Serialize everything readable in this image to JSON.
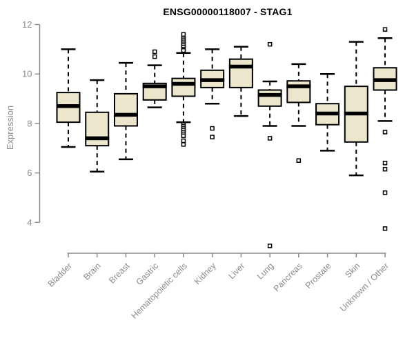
{
  "title": "ENSG00000118007 - STAG1",
  "chart_data": {
    "type": "boxplot",
    "title": "ENSG00000118007 - STAG1",
    "xlabel": "",
    "ylabel": "Expression",
    "ylim": [
      4,
      12
    ],
    "yticks": [
      4,
      6,
      8,
      10,
      12
    ],
    "grid": false,
    "legend": false,
    "colors": {
      "box_fill": "#ece6cc",
      "box_stroke": "#000000",
      "median": "#000000",
      "whisker": "#000000",
      "outlier_stroke": "#000000",
      "axis": "#8c8c8c",
      "tick_label": "#8c8c8c",
      "title": "#000000"
    },
    "categories": [
      "Bladder",
      "Brain",
      "Breast",
      "Gastric",
      "Hematopoietic cells",
      "Kidney",
      "Liver",
      "Lung",
      "Pancreas",
      "Prostate",
      "Skin",
      "Unknown / Other"
    ],
    "series": [
      {
        "name": "Bladder",
        "low": 7.05,
        "q1": 8.05,
        "median": 8.7,
        "q3": 9.25,
        "high": 11.0,
        "outliers": []
      },
      {
        "name": "Brain",
        "low": 6.05,
        "q1": 7.1,
        "median": 7.4,
        "q3": 8.45,
        "high": 9.75,
        "outliers": []
      },
      {
        "name": "Breast",
        "low": 6.55,
        "q1": 7.9,
        "median": 8.35,
        "q3": 9.2,
        "high": 10.45,
        "outliers": []
      },
      {
        "name": "Gastric",
        "low": 8.65,
        "q1": 8.95,
        "median": 9.5,
        "q3": 9.62,
        "high": 10.35,
        "outliers": [
          10.7,
          10.9
        ]
      },
      {
        "name": "Hematopoietic cells",
        "low": 8.05,
        "q1": 9.1,
        "median": 9.6,
        "q3": 9.82,
        "high": 10.85,
        "outliers": [
          11.6,
          11.45,
          11.38,
          11.3,
          11.22,
          11.15,
          11.08,
          11.0,
          10.95,
          7.95,
          7.88,
          7.8,
          7.73,
          7.65,
          7.58,
          7.5,
          7.3,
          7.15
        ]
      },
      {
        "name": "Kidney",
        "low": 8.8,
        "q1": 9.45,
        "median": 9.75,
        "q3": 10.15,
        "high": 11.0,
        "outliers": [
          7.8,
          7.45
        ]
      },
      {
        "name": "Liver",
        "low": 8.3,
        "q1": 9.45,
        "median": 10.3,
        "q3": 10.6,
        "high": 11.1,
        "outliers": []
      },
      {
        "name": "Lung",
        "low": 7.9,
        "q1": 8.7,
        "median": 9.15,
        "q3": 9.35,
        "high": 9.7,
        "outliers": [
          11.2,
          7.4,
          3.05
        ]
      },
      {
        "name": "Pancreas",
        "low": 7.9,
        "q1": 8.85,
        "median": 9.5,
        "q3": 9.72,
        "high": 10.4,
        "outliers": [
          6.5
        ]
      },
      {
        "name": "Prostate",
        "low": 6.9,
        "q1": 7.95,
        "median": 8.4,
        "q3": 8.8,
        "high": 10.0,
        "outliers": []
      },
      {
        "name": "Skin",
        "low": 5.9,
        "q1": 7.25,
        "median": 8.4,
        "q3": 9.5,
        "high": 11.3,
        "outliers": []
      },
      {
        "name": "Unknown / Other",
        "low": 8.1,
        "q1": 9.35,
        "median": 9.75,
        "q3": 10.25,
        "high": 11.45,
        "outliers": [
          11.8,
          7.65,
          6.4,
          6.15,
          5.2,
          3.75
        ]
      }
    ]
  }
}
